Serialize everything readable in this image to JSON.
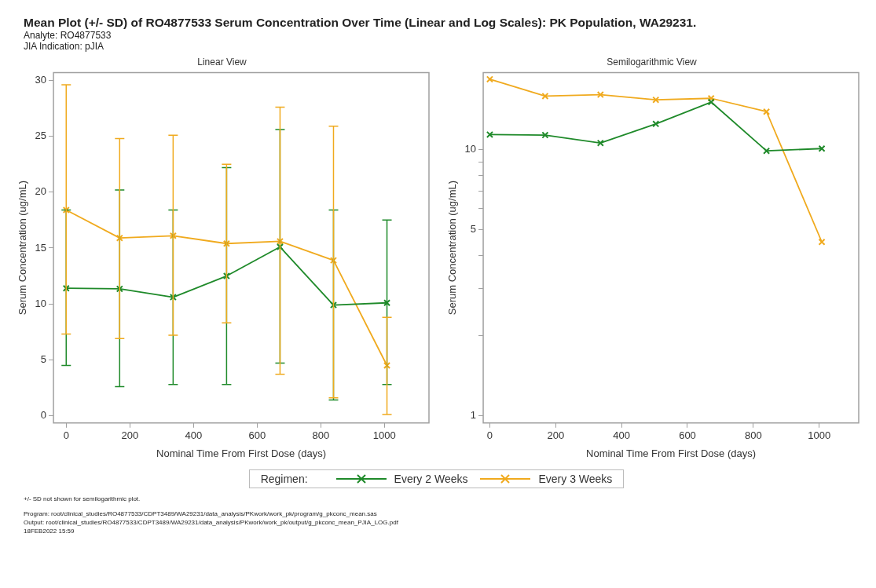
{
  "chart_data": [
    {
      "type": "other",
      "title": "Mean Plot (+/- SD) of RO4877533 Serum Concentration Over Time (Linear and Log Scales): PK Population, WA29231.",
      "subtitle": "Analyte: RO4877533\nJIA Indication: pJIA",
      "annotations": [
        "+/- SD not shown for semilogarithmic plot.",
        "Program: root/clinical_studies/RO4877533/CDPT3489/WA29231/data_analysis/PKwork/work_pk/program/g_pkconc_mean.sas",
        "Output: root/clinical_studies/RO4877533/CDPT3489/WA29231/data_analysis/PKwork/work_pk/output/g_pkconc_mean_PJIA_LOG.pdf",
        "18FEB2022 15:59"
      ]
    },
    {
      "type": "line",
      "title": "Linear View",
      "xlabel": "Nominal Time From First Dose (days)",
      "ylabel": "Serum Concentration (ug/mL)",
      "x": [
        0,
        168,
        336,
        504,
        672,
        840,
        1008
      ],
      "xlim": [
        -40,
        1140
      ],
      "xticks": [
        0,
        200,
        400,
        600,
        800,
        1000
      ],
      "ylim": [
        -0.65,
        30.7
      ],
      "yticks": [
        0,
        5,
        10,
        15,
        20,
        25,
        30
      ],
      "grid": false,
      "marker": "cross",
      "line_style": "solid",
      "legend": "bottom",
      "legend_title": "Regimen:",
      "series": [
        {
          "name": "Every 2 Weeks",
          "color": "#1f8a2a",
          "values": [
            11.4,
            11.35,
            10.6,
            12.5,
            15.1,
            9.9,
            10.1
          ],
          "errors": [
            [
              4.5,
              18.4
            ],
            [
              2.6,
              20.2
            ],
            [
              2.8,
              18.4
            ],
            [
              2.8,
              22.2
            ],
            [
              4.7,
              25.6
            ],
            [
              1.4,
              18.4
            ],
            [
              2.8,
              17.5
            ]
          ]
        },
        {
          "name": "Every 3 Weeks",
          "color": "#f0aa1e",
          "values": [
            18.4,
            15.9,
            16.1,
            15.4,
            15.6,
            13.9,
            4.5
          ],
          "errors": [
            [
              7.3,
              29.6
            ],
            [
              6.9,
              24.8
            ],
            [
              7.2,
              25.1
            ],
            [
              8.3,
              22.5
            ],
            [
              3.7,
              27.6
            ],
            [
              1.6,
              25.9
            ],
            [
              0.1,
              8.8
            ]
          ]
        }
      ]
    },
    {
      "type": "line",
      "title": "Semilogarithmic View",
      "xlabel": "Nominal Time From First Dose (days)",
      "ylabel": "Serum Concentration (ug/mL)",
      "x": [
        0,
        168,
        336,
        504,
        672,
        840,
        1008
      ],
      "xlim": [
        -20,
        1120
      ],
      "xticks": [
        0,
        200,
        400,
        600,
        800,
        1000
      ],
      "ylim": [
        0.94,
        19.5
      ],
      "yticks": [
        1,
        {
          "value": 2,
          "label": null
        },
        {
          "value": 3,
          "label": null
        },
        {
          "value": 4,
          "label": null
        },
        5,
        {
          "value": 6,
          "label": null
        },
        {
          "value": 7,
          "label": null
        },
        {
          "value": 8,
          "label": null
        },
        {
          "value": 9,
          "label": null
        },
        10
      ],
      "log": true,
      "grid": false,
      "marker": "cross",
      "line_style": "solid",
      "series": [
        {
          "color": "#1f8a2a",
          "values": [
            11.4,
            11.35,
            10.6,
            12.5,
            15.1,
            9.9,
            10.1
          ]
        },
        {
          "color": "#f0aa1e",
          "values": [
            18.4,
            15.9,
            16.1,
            15.4,
            15.6,
            13.9,
            4.5
          ]
        }
      ]
    }
  ]
}
